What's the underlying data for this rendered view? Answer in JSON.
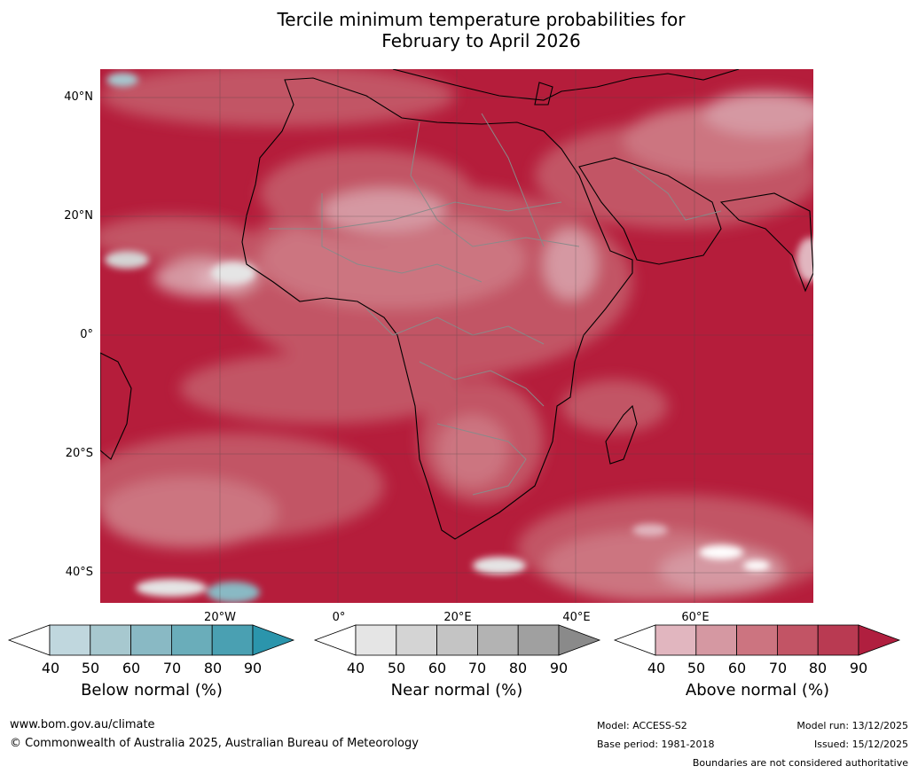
{
  "title": {
    "line1": "Tercile minimum temperature probabilities for",
    "line2": "February to April 2026"
  },
  "map": {
    "lat_labels": [
      "40°N",
      "20°N",
      "0°",
      "20°S",
      "40°S"
    ],
    "lon_labels": [
      "20°W",
      "0°",
      "20°E",
      "40°E",
      "60°E"
    ],
    "dominant_color": "#b51d3b"
  },
  "colorbars": [
    {
      "title": "Below normal (%)",
      "ticks": [
        "40",
        "50",
        "60",
        "70",
        "80",
        "90"
      ],
      "colors": [
        "#ffffff",
        "#c0d7de",
        "#a7c8cf",
        "#89b9c4",
        "#6aadba",
        "#4aa0b2",
        "#2b95ac"
      ]
    },
    {
      "title": "Near normal (%)",
      "ticks": [
        "40",
        "50",
        "60",
        "70",
        "80",
        "90"
      ],
      "colors": [
        "#ffffff",
        "#e5e5e5",
        "#d4d4d4",
        "#c4c4c4",
        "#b3b3b3",
        "#a0a0a0",
        "#8a8a8a"
      ]
    },
    {
      "title": "Above normal (%)",
      "ticks": [
        "40",
        "50",
        "60",
        "70",
        "80",
        "90"
      ],
      "colors": [
        "#ffffff",
        "#e1b6bf",
        "#d598a2",
        "#cc7480",
        "#c25465",
        "#b93a52",
        "#b01f3f"
      ]
    }
  ],
  "footer": {
    "website": "www.bom.gov.au/climate",
    "copyright": "© Commonwealth of Australia 2025, Australian Bureau of Meteorology",
    "model": "Model: ACCESS-S2",
    "base_period": "Base period: 1981-2018",
    "model_run": "Model run: 13/12/2025",
    "issued": "Issued: 15/12/2025",
    "disclaimer": "Boundaries are not considered authoritative"
  }
}
